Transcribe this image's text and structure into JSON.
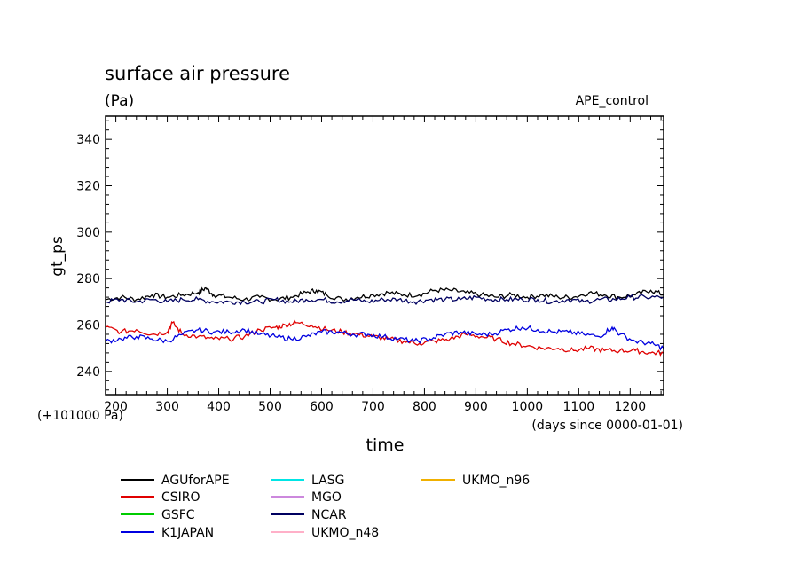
{
  "chart_data": {
    "type": "line",
    "title": "surface air pressure",
    "units": "(Pa)",
    "experiment": "APE_control",
    "xlabel": "time",
    "x_units": "(days since 0000-01-01)",
    "ylabel": "gt_ps",
    "y_offset_label": "(+101000 Pa)",
    "xlim": [
      180,
      1265
    ],
    "ylim": [
      230,
      350
    ],
    "x_ticks": [
      200,
      300,
      400,
      500,
      600,
      700,
      800,
      900,
      1000,
      1100,
      1200
    ],
    "y_ticks": [
      240,
      260,
      280,
      300,
      320,
      340
    ],
    "x_tick_labels": [
      "200",
      "300",
      "400",
      "500",
      "600",
      "700",
      "800",
      "900",
      "1000",
      "1100",
      "1200"
    ],
    "y_tick_labels": [
      "240",
      "260",
      "280",
      "300",
      "320",
      "340"
    ],
    "legend": [
      {
        "name": "AGUforAPE",
        "color": "#000000"
      },
      {
        "name": "CSIRO",
        "color": "#e00000"
      },
      {
        "name": "GSFC",
        "color": "#00cc00"
      },
      {
        "name": "K1JAPAN",
        "color": "#0000e0"
      },
      {
        "name": "LASG",
        "color": "#00e5e5"
      },
      {
        "name": "MGO",
        "color": "#cc88dd"
      },
      {
        "name": "NCAR",
        "color": "#000060"
      },
      {
        "name": "UKMO_n48",
        "color": "#ffb0c8"
      },
      {
        "name": "UKMO_n96",
        "color": "#f0b000"
      }
    ],
    "series": [
      {
        "name": "AGUforAPE",
        "color": "#000000",
        "x": [
          180,
          210,
          240,
          270,
          300,
          330,
          360,
          375,
          390,
          420,
          450,
          480,
          510,
          540,
          570,
          590,
          610,
          640,
          670,
          700,
          730,
          760,
          790,
          820,
          850,
          880,
          910,
          940,
          970,
          1000,
          1030,
          1060,
          1090,
          1120,
          1150,
          1180,
          1210,
          1240,
          1265
        ],
        "values": [
          271,
          272,
          271,
          273,
          272,
          273,
          274,
          276,
          273,
          272,
          271,
          272,
          271,
          272,
          274,
          275,
          273,
          271,
          272,
          273,
          274,
          273,
          273,
          275,
          275,
          274,
          273,
          272,
          273,
          272,
          273,
          272,
          272,
          274,
          273,
          272,
          273,
          275,
          273
        ]
      },
      {
        "name": "NCAR",
        "color": "#000060",
        "x": [
          180,
          210,
          240,
          270,
          300,
          330,
          360,
          390,
          420,
          450,
          480,
          510,
          540,
          570,
          600,
          630,
          660,
          690,
          720,
          750,
          780,
          810,
          840,
          870,
          900,
          930,
          960,
          990,
          1020,
          1050,
          1080,
          1110,
          1140,
          1170,
          1200,
          1230,
          1265
        ],
        "values": [
          270,
          271,
          270,
          271,
          270,
          271,
          271,
          270,
          270,
          270,
          270,
          271,
          270,
          271,
          271,
          270,
          271,
          270,
          271,
          271,
          270,
          271,
          271,
          271,
          272,
          271,
          271,
          271,
          271,
          270,
          271,
          270,
          271,
          271,
          272,
          272,
          272
        ]
      },
      {
        "name": "CSIRO",
        "color": "#e00000",
        "x": [
          180,
          210,
          240,
          270,
          300,
          310,
          330,
          360,
          390,
          420,
          450,
          480,
          510,
          530,
          550,
          580,
          610,
          640,
          670,
          700,
          730,
          760,
          790,
          820,
          850,
          880,
          910,
          940,
          970,
          1000,
          1030,
          1060,
          1090,
          1120,
          1150,
          1180,
          1210,
          1240,
          1265
        ],
        "values": [
          259,
          257,
          258,
          256,
          257,
          261,
          256,
          255,
          254,
          254,
          255,
          258,
          259,
          260,
          261,
          260,
          258,
          257,
          256,
          255,
          254,
          253,
          252,
          253,
          254,
          256,
          255,
          254,
          252,
          251,
          250,
          250,
          249,
          250,
          249,
          249,
          249,
          248,
          248
        ]
      },
      {
        "name": "K1JAPAN",
        "color": "#0000e0",
        "x": [
          180,
          210,
          240,
          270,
          300,
          330,
          360,
          390,
          420,
          450,
          480,
          510,
          540,
          570,
          600,
          630,
          660,
          690,
          720,
          750,
          780,
          810,
          840,
          870,
          900,
          930,
          960,
          990,
          1020,
          1050,
          1080,
          1110,
          1140,
          1165,
          1180,
          1210,
          1240,
          1265
        ],
        "values": [
          253,
          254,
          255,
          254,
          253,
          256,
          258,
          257,
          257,
          258,
          256,
          255,
          254,
          255,
          257,
          257,
          256,
          256,
          255,
          254,
          253,
          254,
          256,
          257,
          256,
          256,
          258,
          259,
          258,
          257,
          257,
          256,
          255,
          259,
          256,
          253,
          252,
          250
        ]
      }
    ]
  }
}
